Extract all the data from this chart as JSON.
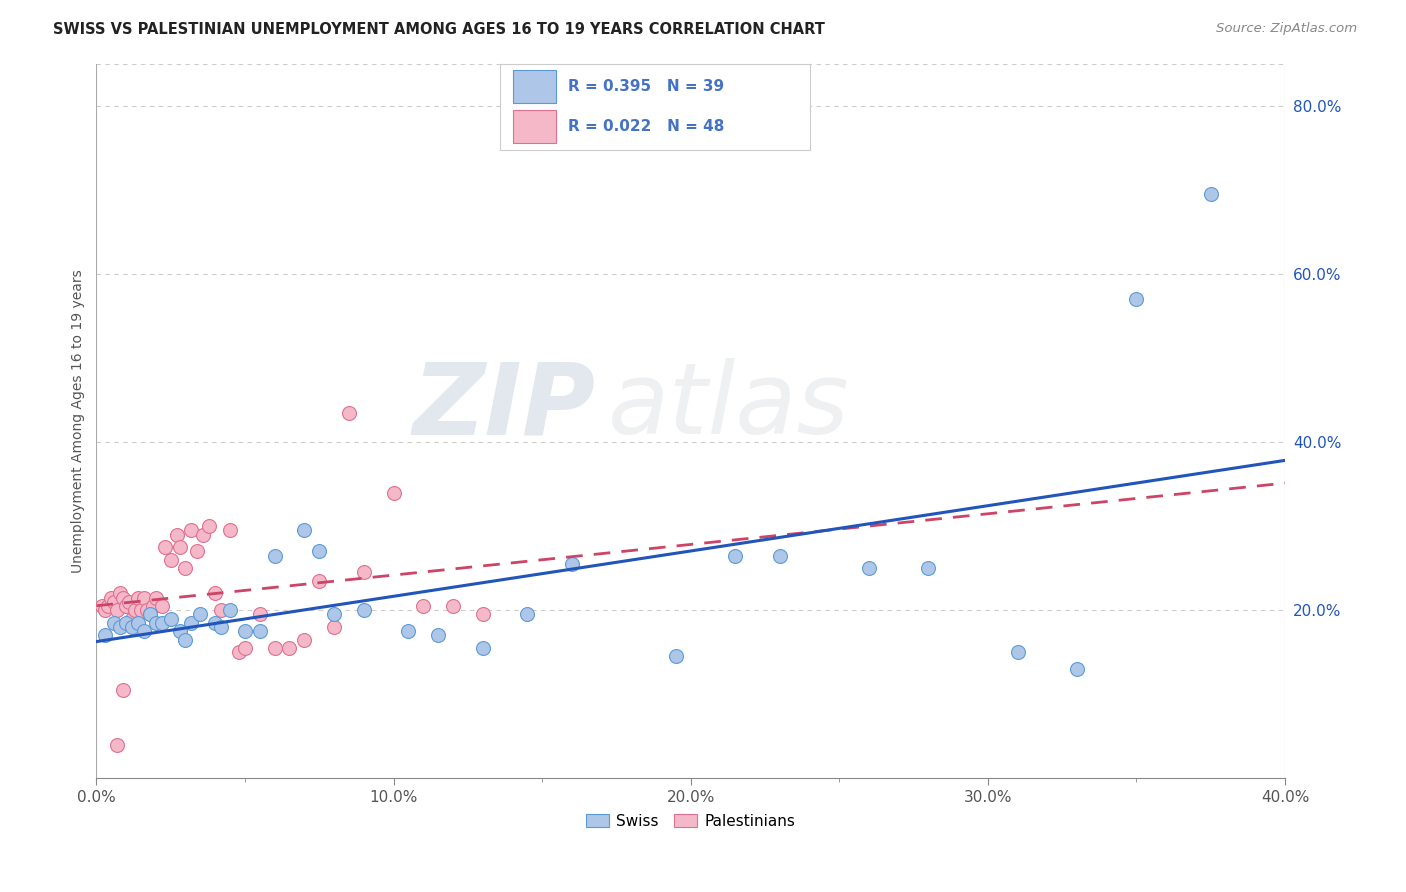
{
  "title": "SWISS VS PALESTINIAN UNEMPLOYMENT AMONG AGES 16 TO 19 YEARS CORRELATION CHART",
  "source": "Source: ZipAtlas.com",
  "ylabel": "Unemployment Among Ages 16 to 19 years",
  "xlim": [
    0.0,
    0.4
  ],
  "ylim": [
    0.0,
    0.85
  ],
  "xtick_labels": [
    "0.0%",
    "",
    "",
    "",
    "",
    "10.0%",
    "",
    "",
    "",
    "",
    "20.0%",
    "",
    "",
    "",
    "",
    "30.0%",
    "",
    "",
    "",
    "",
    "40.0%"
  ],
  "xtick_values": [
    0.0,
    0.02,
    0.04,
    0.06,
    0.08,
    0.1,
    0.12,
    0.14,
    0.16,
    0.18,
    0.2,
    0.22,
    0.24,
    0.26,
    0.28,
    0.3,
    0.32,
    0.34,
    0.36,
    0.38,
    0.4
  ],
  "xtick_major_labels": [
    "0.0%",
    "10.0%",
    "20.0%",
    "30.0%",
    "40.0%"
  ],
  "xtick_major_values": [
    0.0,
    0.1,
    0.2,
    0.3,
    0.4
  ],
  "ytick_labels": [
    "20.0%",
    "40.0%",
    "60.0%",
    "80.0%"
  ],
  "ytick_values": [
    0.2,
    0.4,
    0.6,
    0.8
  ],
  "swiss_color": "#aec6e8",
  "swiss_edge_color": "#5b9bd5",
  "palestinian_color": "#f4b8c8",
  "palestinian_edge_color": "#e07090",
  "trend_swiss_color": "#2255bb",
  "trend_palestinian_color": "#cc4466",
  "legend_text_color": "#4472c4",
  "swiss_R": "0.395",
  "swiss_N": "39",
  "palestinian_R": "0.022",
  "palestinian_N": "48",
  "swiss_x": [
    0.003,
    0.006,
    0.008,
    0.01,
    0.012,
    0.014,
    0.016,
    0.018,
    0.02,
    0.022,
    0.025,
    0.028,
    0.03,
    0.032,
    0.035,
    0.04,
    0.042,
    0.045,
    0.05,
    0.055,
    0.06,
    0.07,
    0.075,
    0.08,
    0.09,
    0.105,
    0.115,
    0.13,
    0.145,
    0.16,
    0.195,
    0.215,
    0.23,
    0.26,
    0.28,
    0.31,
    0.33,
    0.35,
    0.375
  ],
  "swiss_y": [
    0.17,
    0.185,
    0.18,
    0.185,
    0.18,
    0.185,
    0.175,
    0.195,
    0.185,
    0.185,
    0.19,
    0.175,
    0.165,
    0.185,
    0.195,
    0.185,
    0.18,
    0.2,
    0.175,
    0.175,
    0.265,
    0.295,
    0.27,
    0.195,
    0.2,
    0.175,
    0.17,
    0.155,
    0.195,
    0.255,
    0.145,
    0.265,
    0.265,
    0.25,
    0.25,
    0.15,
    0.13,
    0.57,
    0.695
  ],
  "palestinian_x": [
    0.002,
    0.003,
    0.004,
    0.005,
    0.006,
    0.007,
    0.008,
    0.009,
    0.01,
    0.011,
    0.012,
    0.013,
    0.014,
    0.015,
    0.016,
    0.017,
    0.018,
    0.019,
    0.02,
    0.022,
    0.023,
    0.025,
    0.027,
    0.028,
    0.03,
    0.032,
    0.034,
    0.036,
    0.038,
    0.04,
    0.042,
    0.045,
    0.048,
    0.05,
    0.055,
    0.06,
    0.065,
    0.07,
    0.075,
    0.08,
    0.085,
    0.09,
    0.1,
    0.11,
    0.12,
    0.13,
    0.007,
    0.009
  ],
  "palestinian_y": [
    0.205,
    0.2,
    0.205,
    0.215,
    0.21,
    0.2,
    0.22,
    0.215,
    0.205,
    0.21,
    0.19,
    0.2,
    0.215,
    0.2,
    0.215,
    0.2,
    0.195,
    0.205,
    0.215,
    0.205,
    0.275,
    0.26,
    0.29,
    0.275,
    0.25,
    0.295,
    0.27,
    0.29,
    0.3,
    0.22,
    0.2,
    0.295,
    0.15,
    0.155,
    0.195,
    0.155,
    0.155,
    0.165,
    0.235,
    0.18,
    0.435,
    0.245,
    0.34,
    0.205,
    0.205,
    0.195,
    0.04,
    0.105
  ],
  "watermark_zip": "ZIP",
  "watermark_atlas": "atlas",
  "background_color": "#ffffff",
  "grid_color": "#cccccc",
  "marker_size": 100
}
